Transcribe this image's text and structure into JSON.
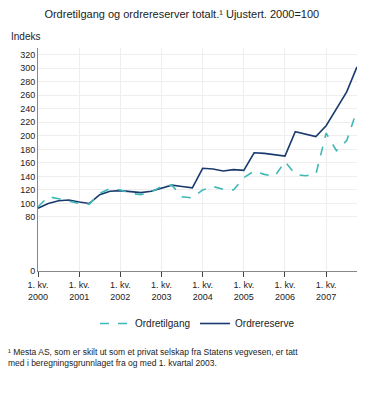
{
  "chart_data": {
    "type": "line",
    "title": "Ordretilgang og ordrereserver totalt.¹ Ujustert. 2000=100",
    "ylabel": "Indeks",
    "footnote": "¹ Mesta AS, som er skilt ut som et privat selskap fra Statens vegvesen, er tatt\nmed i beregningsgrunnlaget fra og med 1. kvartal 2003.",
    "categories": [
      "1. kv.\n2000",
      null,
      null,
      null,
      "1. kv.\n2001",
      null,
      null,
      null,
      "1. kv.\n2002",
      null,
      null,
      null,
      "1. kv.\n2003",
      null,
      null,
      null,
      "1. kv.\n2004",
      null,
      null,
      null,
      "1. kv.\n2005",
      null,
      null,
      null,
      "1. kv.\n2006",
      null,
      null,
      null,
      "1. kv.\n2007",
      null,
      null,
      null
    ],
    "series": [
      {
        "name": "Ordrereserve",
        "color": "#1a3a6e",
        "line_style": "solid",
        "values": [
          93,
          100,
          104,
          105,
          102,
          100,
          113,
          118,
          119,
          117,
          116,
          118,
          123,
          127,
          125,
          123,
          152,
          151,
          148,
          150,
          149,
          175,
          174,
          172,
          170,
          206,
          202,
          199,
          215,
          240,
          265,
          302
        ]
      },
      {
        "name": "Ordretilgang",
        "color": "#40b8b8",
        "line_style": "dashed",
        "values": [
          95,
          110,
          107,
          103,
          100,
          99,
          115,
          122,
          120,
          115,
          113,
          117,
          125,
          127,
          110,
          108,
          120,
          125,
          121,
          120,
          138,
          148,
          143,
          140,
          162,
          143,
          141,
          143,
          204,
          178,
          193,
          238
        ]
      }
    ],
    "ylim": [
      0,
      330
    ],
    "yticks": [
      0,
      80,
      100,
      120,
      140,
      160,
      180,
      200,
      220,
      240,
      260,
      280,
      300,
      320
    ],
    "grid": true
  }
}
